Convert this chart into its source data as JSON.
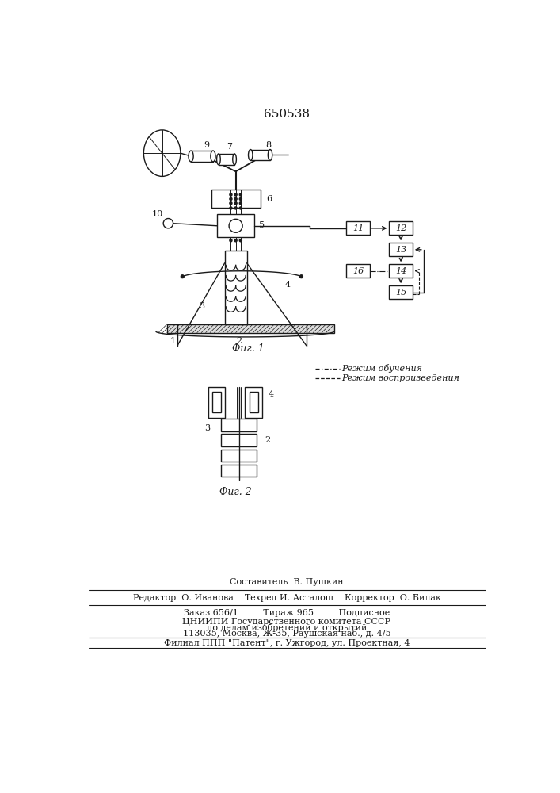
{
  "patent_number": "650538",
  "bg_color": "#ffffff",
  "line_color": "#1a1a1a",
  "fig1_caption": "Фиг. 1",
  "fig2_caption": "Фиг. 2",
  "legend_text1": "Режим обучения",
  "legend_text2": "Режим воспроизведения",
  "footer_line1": "Составитель  В. Пушкин",
  "footer_line2": "Редактор  О. Иванова    Техред И. Асталош    Корректор  О. Билак",
  "footer_line3": "Заказ 656/1         Тираж 965         Подписное",
  "footer_line4": "ЦНИИПИ Государственного комитета СССР",
  "footer_line5": "по делам изобретений и открытий",
  "footer_line6": "113035, Москва, Ж-35, Раушская наб., д. 4/5",
  "footer_line7": "Филиал ППП \"Патент\", г. Ужгород, ул. Проектная, 4"
}
